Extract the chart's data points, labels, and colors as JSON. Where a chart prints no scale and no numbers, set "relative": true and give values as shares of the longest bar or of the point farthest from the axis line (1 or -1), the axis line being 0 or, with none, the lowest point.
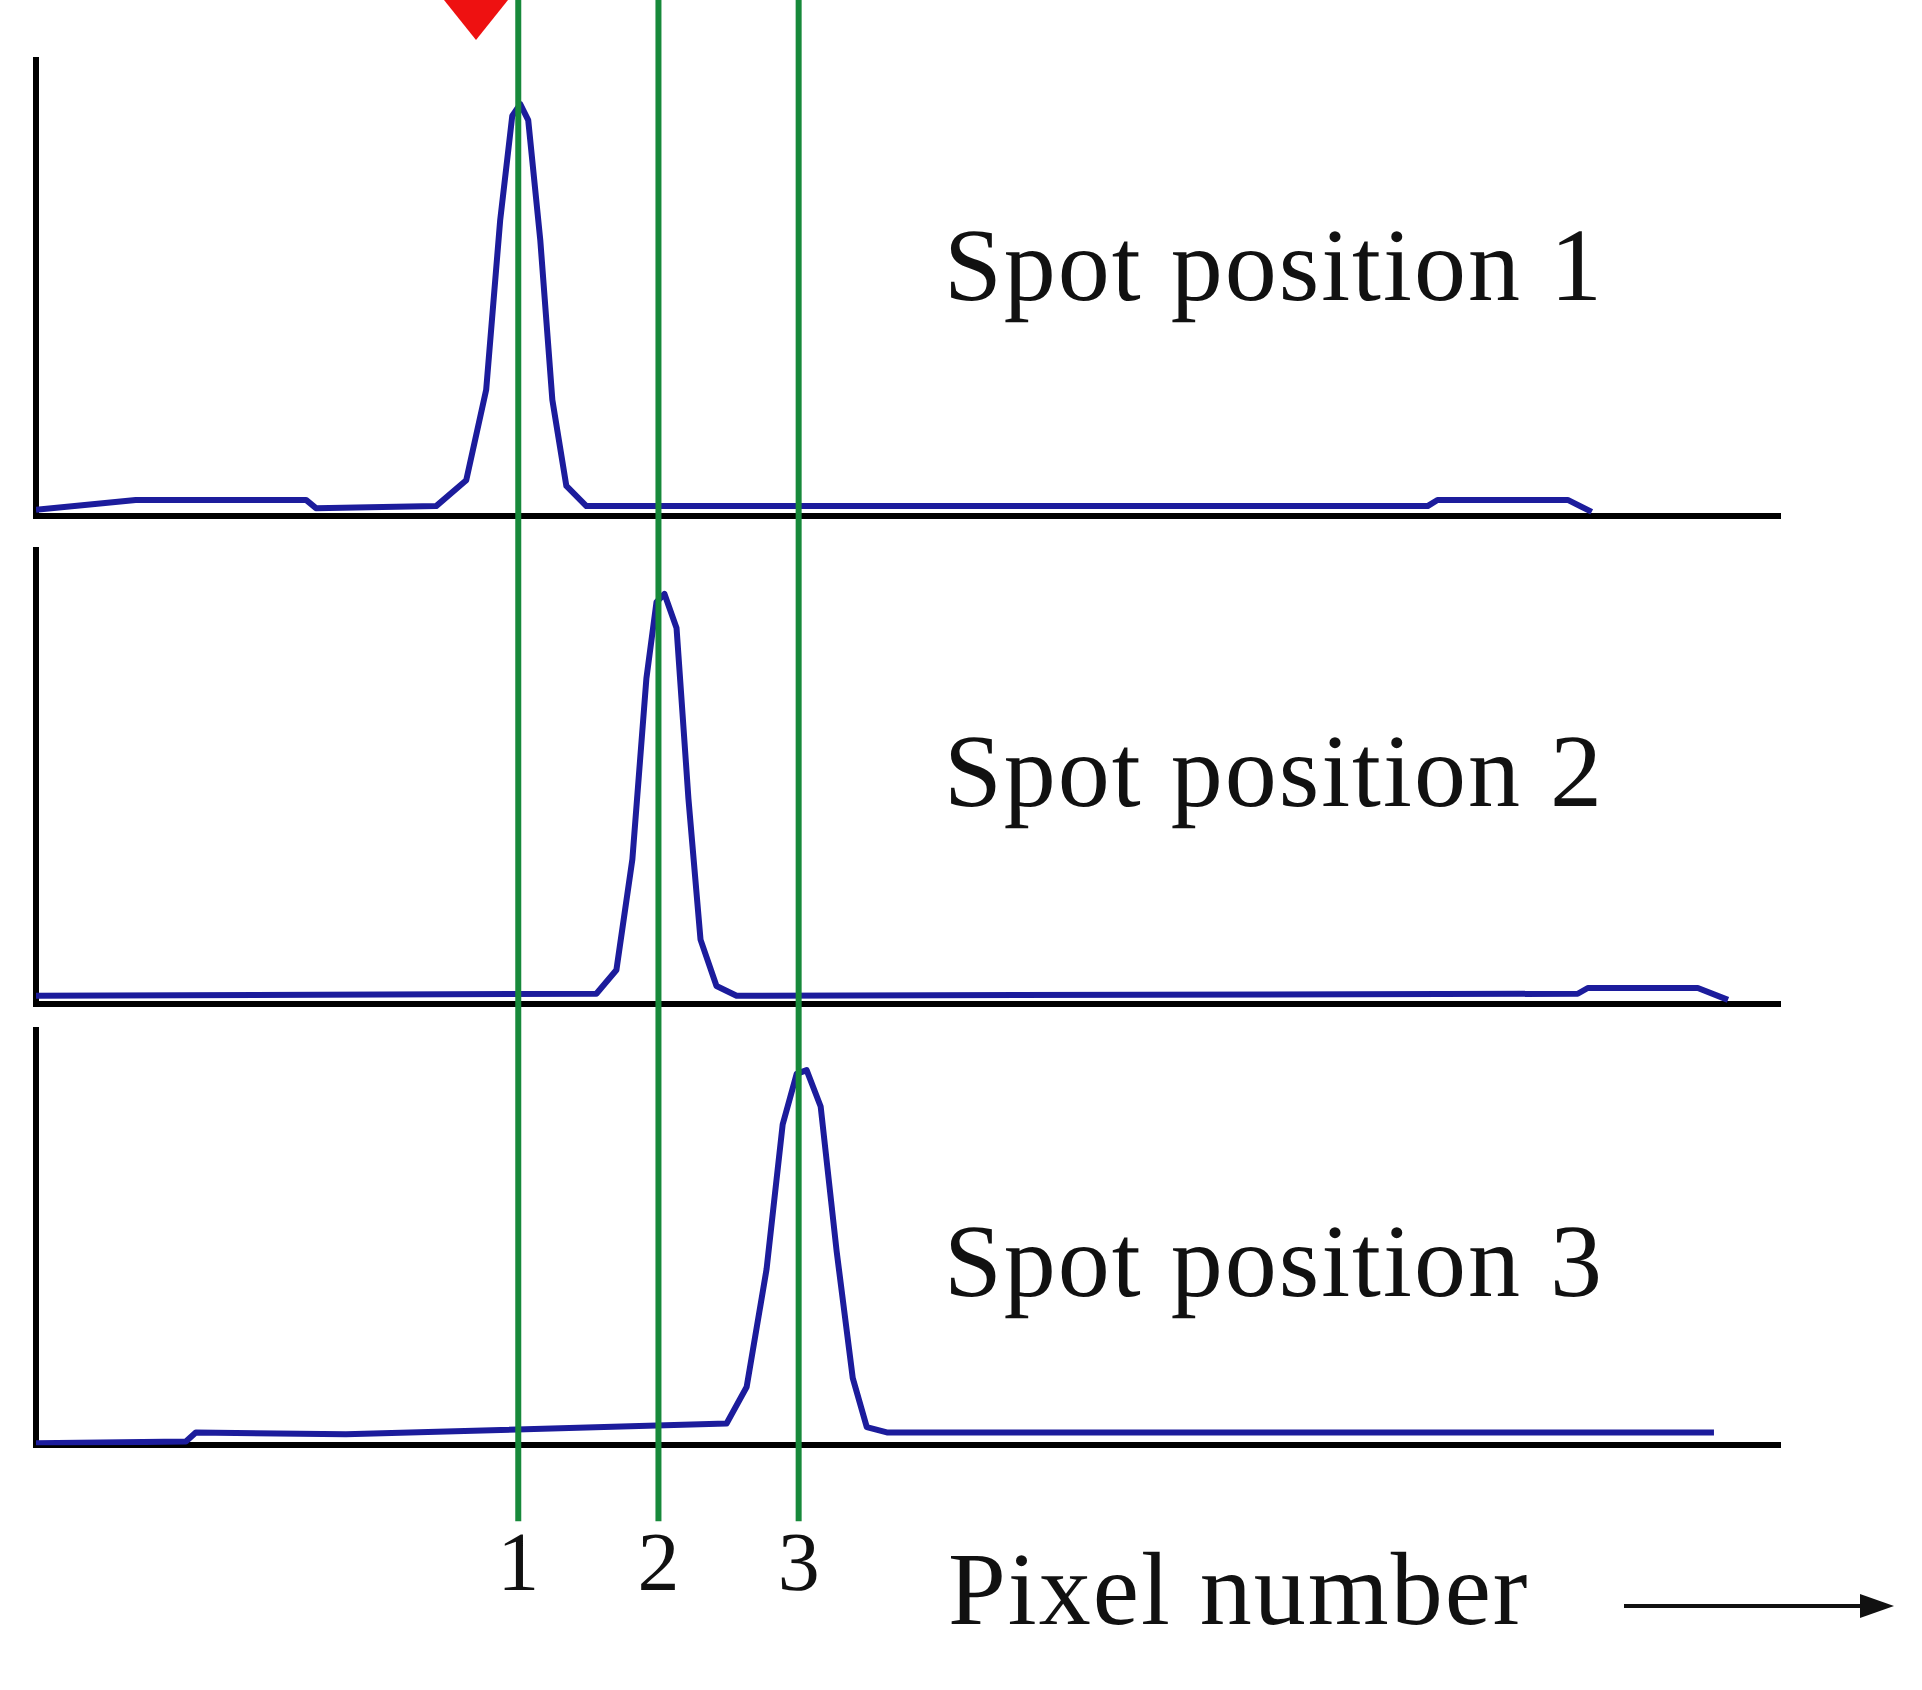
{
  "chart_data": [
    {
      "type": "line",
      "relative": true,
      "color": "#1c1c9c",
      "xlim": [
        -2.44,
        10
      ],
      "xticks": [
        1,
        2,
        3
      ],
      "tick_labels": false,
      "x": [
        -2.44,
        -1.729,
        -0.514,
        -0.443,
        0.414,
        0.629,
        0.771,
        0.871,
        0.957,
        1.014,
        1.071,
        1.157,
        1.243,
        1.343,
        1.486,
        7.486,
        7.557,
        8.486,
        8.657
      ],
      "values": [
        0.015,
        0.039,
        0.039,
        0.019,
        0.024,
        0.087,
        0.306,
        0.718,
        0.971,
        1,
        0.961,
        0.67,
        0.282,
        0.073,
        0.024,
        0.024,
        0.039,
        0.039,
        0.01
      ],
      "ref_lines": [
        {
          "axis": "x",
          "value": 1,
          "color": "#17893a"
        },
        {
          "axis": "x",
          "value": 2,
          "color": "#17893a"
        },
        {
          "axis": "x",
          "value": 3,
          "color": "#17893a"
        }
      ],
      "annotations": [
        "Spot position 1"
      ]
    },
    {
      "type": "line",
      "relative": true,
      "color": "#1c1c9c",
      "xlim": [
        -2.44,
        10
      ],
      "xticks": [
        1,
        2,
        3
      ],
      "tick_labels": false,
      "x": [
        -2.44,
        1.557,
        1.7,
        1.814,
        1.914,
        1.986,
        2.043,
        2.129,
        2.214,
        2.3,
        2.414,
        2.557,
        8.557,
        8.629,
        9.414,
        9.629
      ],
      "values": [
        0.02,
        0.025,
        0.083,
        0.353,
        0.794,
        0.98,
        1,
        0.917,
        0.5,
        0.157,
        0.044,
        0.02,
        0.025,
        0.039,
        0.039,
        0.01
      ],
      "ref_lines": [
        {
          "axis": "x",
          "value": 1,
          "color": "#17893a"
        },
        {
          "axis": "x",
          "value": 2,
          "color": "#17893a"
        },
        {
          "axis": "x",
          "value": 3,
          "color": "#17893a"
        }
      ],
      "annotations": [
        "Spot position 2"
      ]
    },
    {
      "type": "line",
      "relative": true,
      "color": "#1c1c9c",
      "xlim": [
        -2.44,
        10
      ],
      "xticks": [
        1,
        2,
        3
      ],
      "tick_labels": "x",
      "xlabel": "Pixel number",
      "x": [
        -2.44,
        -1.371,
        -1.3,
        -0.229,
        2.486,
        2.629,
        2.771,
        2.886,
        2.986,
        3.057,
        3.157,
        3.271,
        3.386,
        3.486,
        3.629,
        9.529
      ],
      "values": [
        0.005,
        0.01,
        0.034,
        0.029,
        0.058,
        0.155,
        0.469,
        0.855,
        0.99,
        1,
        0.903,
        0.517,
        0.179,
        0.048,
        0.034,
        0.034
      ],
      "ref_lines": [
        {
          "axis": "x",
          "value": 1,
          "color": "#17893a"
        },
        {
          "axis": "x",
          "value": 2,
          "color": "#17893a"
        },
        {
          "axis": "x",
          "value": 3,
          "color": "#17893a"
        }
      ],
      "annotations": [
        "Spot position 3"
      ]
    }
  ]
}
